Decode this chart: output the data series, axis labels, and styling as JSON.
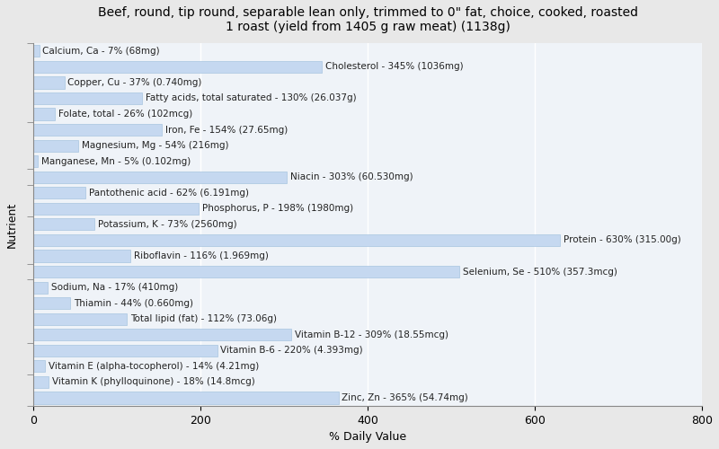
{
  "title": "Beef, round, tip round, separable lean only, trimmed to 0\" fat, choice, cooked, roasted\n1 roast (yield from 1405 g raw meat) (1138g)",
  "xlabel": "% Daily Value",
  "ylabel": "Nutrient",
  "background_color": "#e8e8e8",
  "plot_bg_color": "#eff3f8",
  "bar_color": "#c5d8f0",
  "bar_edge_color": "#a8c4e0",
  "nutrients": [
    {
      "name": "Calcium, Ca - 7% (68mg)",
      "value": 7
    },
    {
      "name": "Cholesterol - 345% (1036mg)",
      "value": 345
    },
    {
      "name": "Copper, Cu - 37% (0.740mg)",
      "value": 37
    },
    {
      "name": "Fatty acids, total saturated - 130% (26.037g)",
      "value": 130
    },
    {
      "name": "Folate, total - 26% (102mcg)",
      "value": 26
    },
    {
      "name": "Iron, Fe - 154% (27.65mg)",
      "value": 154
    },
    {
      "name": "Magnesium, Mg - 54% (216mg)",
      "value": 54
    },
    {
      "name": "Manganese, Mn - 5% (0.102mg)",
      "value": 5
    },
    {
      "name": "Niacin - 303% (60.530mg)",
      "value": 303
    },
    {
      "name": "Pantothenic acid - 62% (6.191mg)",
      "value": 62
    },
    {
      "name": "Phosphorus, P - 198% (1980mg)",
      "value": 198
    },
    {
      "name": "Potassium, K - 73% (2560mg)",
      "value": 73
    },
    {
      "name": "Protein - 630% (315.00g)",
      "value": 630
    },
    {
      "name": "Riboflavin - 116% (1.969mg)",
      "value": 116
    },
    {
      "name": "Selenium, Se - 510% (357.3mcg)",
      "value": 510
    },
    {
      "name": "Sodium, Na - 17% (410mg)",
      "value": 17
    },
    {
      "name": "Thiamin - 44% (0.660mg)",
      "value": 44
    },
    {
      "name": "Total lipid (fat) - 112% (73.06g)",
      "value": 112
    },
    {
      "name": "Vitamin B-12 - 309% (18.55mcg)",
      "value": 309
    },
    {
      "name": "Vitamin B-6 - 220% (4.393mg)",
      "value": 220
    },
    {
      "name": "Vitamin E (alpha-tocopherol) - 14% (4.21mg)",
      "value": 14
    },
    {
      "name": "Vitamin K (phylloquinone) - 18% (14.8mcg)",
      "value": 18
    },
    {
      "name": "Zinc, Zn - 365% (54.74mg)",
      "value": 365
    }
  ],
  "xlim": [
    0,
    800
  ],
  "xticks": [
    0,
    200,
    400,
    600,
    800
  ],
  "title_fontsize": 10,
  "axis_label_fontsize": 9,
  "tick_fontsize": 9,
  "bar_label_fontsize": 7.5
}
